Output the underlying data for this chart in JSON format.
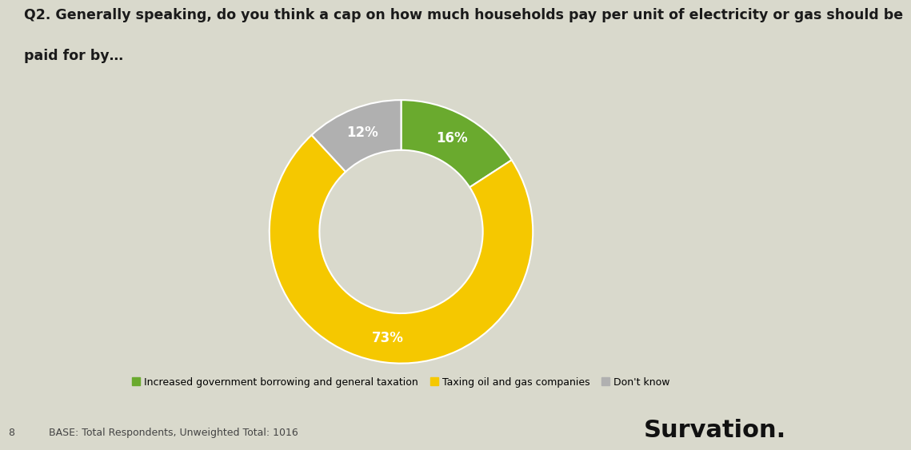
{
  "title_line1": "Q2. Generally speaking, do you think a cap on how much households pay per unit of electricity or gas should be",
  "title_line2": "paid for by…",
  "slices": [
    16,
    73,
    12
  ],
  "labels": [
    "16%",
    "73%",
    "12%"
  ],
  "colors": [
    "#6aaa2e",
    "#f5c800",
    "#b0b0b0"
  ],
  "legend_labels": [
    "Increased government borrowing and general taxation",
    "Taxing oil and gas companies",
    "Don't know"
  ],
  "base_text": "BASE: Total Respondents, Unweighted Total: 1016",
  "page_number": "8",
  "brand": "Survation.",
  "background_color": "#d9d9cc",
  "hole_color": "#d9d9cc",
  "title_fontsize": 12.5,
  "legend_fontsize": 9,
  "base_fontsize": 9,
  "brand_fontsize": 22,
  "label_fontsize": 12,
  "donut_width": 0.38
}
